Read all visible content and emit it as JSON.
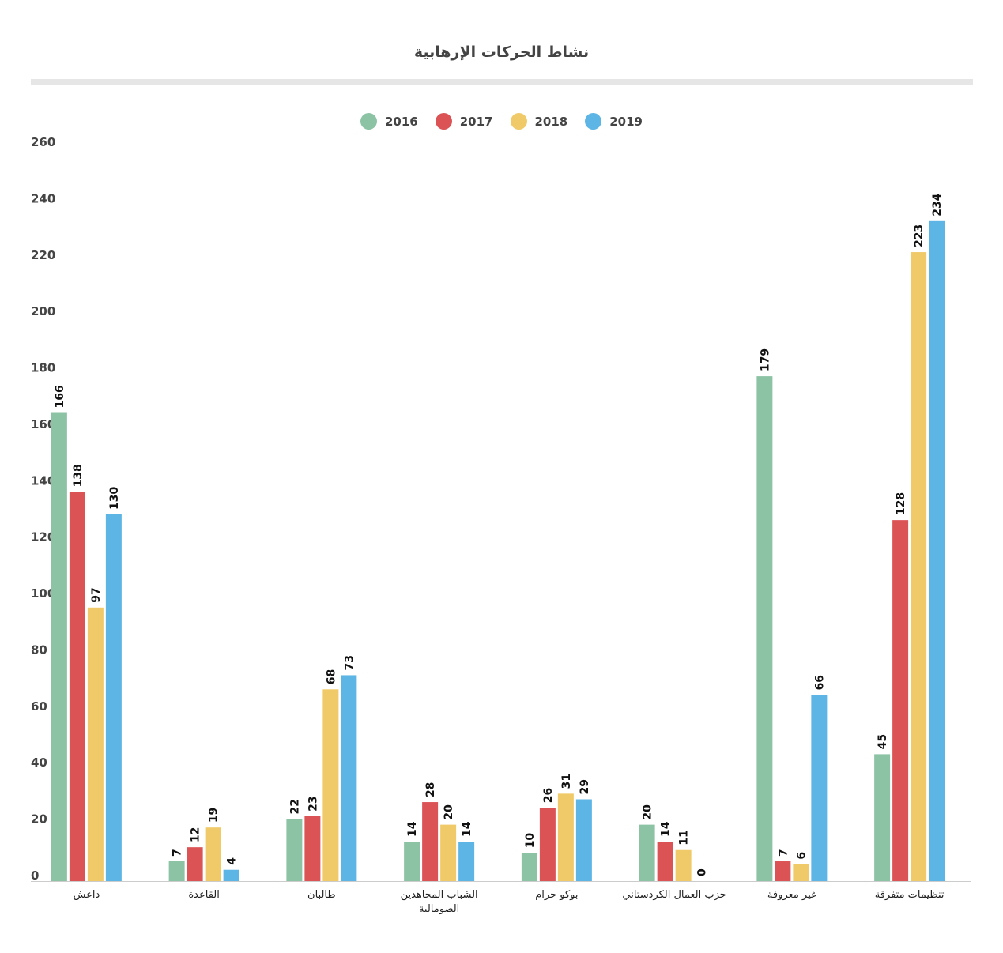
{
  "chart_data": {
    "type": "bar",
    "title": "نشاط الحركات الإرهابية",
    "categories": [
      "داعش",
      "القاعدة",
      "طالبان",
      "الشباب المجاهدين الصومالية",
      "بوكو حرام",
      "حزب العمال الكردستاني",
      "غير معروفة",
      "تنظيمات متفرقة"
    ],
    "series": [
      {
        "name": "2016",
        "color": "#8dc3a5",
        "values": [
          166,
          7,
          22,
          14,
          10,
          20,
          179,
          45
        ]
      },
      {
        "name": "2017",
        "color": "#dc5356",
        "values": [
          138,
          12,
          23,
          28,
          26,
          14,
          7,
          128
        ]
      },
      {
        "name": "2018",
        "color": "#f0ca69",
        "values": [
          97,
          19,
          68,
          20,
          31,
          11,
          6,
          223
        ]
      },
      {
        "name": "2019",
        "color": "#5db5e5",
        "values": [
          130,
          4,
          73,
          14,
          29,
          0,
          66,
          234
        ]
      }
    ],
    "yticks": [
      "0",
      "20",
      "40",
      "60",
      "80",
      "100",
      "120",
      "140",
      "160",
      "180",
      "200",
      "220",
      "240",
      "260"
    ],
    "ylim": [
      0,
      260
    ],
    "xlabel": "",
    "ylabel": "",
    "grid": false,
    "legend_position": "top-center"
  }
}
